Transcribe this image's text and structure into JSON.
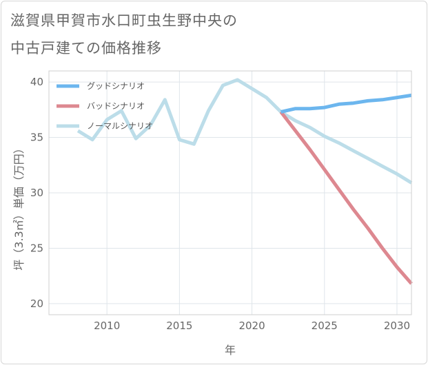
{
  "title_lines": [
    "滋賀県甲賀市水口町虫生野中央の",
    "中古戸建ての価格推移"
  ],
  "chart_data": {
    "type": "line",
    "title": "滋賀県甲賀市水口町虫生野中央の中古戸建ての価格推移",
    "xlabel": "年",
    "ylabel": "坪（3.3㎡）単価（万円）",
    "xlim": [
      2006,
      2031
    ],
    "ylim": [
      19,
      41
    ],
    "xticks": [
      2010,
      2015,
      2020,
      2025,
      2030
    ],
    "yticks": [
      20,
      25,
      30,
      35,
      40
    ],
    "grid": true,
    "legend_position": "top-left",
    "series": [
      {
        "name": "グッドシナリオ",
        "color": "#6cb6ee",
        "x": [
          2022,
          2023,
          2024,
          2025,
          2026,
          2027,
          2028,
          2029,
          2030,
          2031
        ],
        "y": [
          37.3,
          37.6,
          37.6,
          37.7,
          38.0,
          38.1,
          38.3,
          38.4,
          38.6,
          38.8
        ]
      },
      {
        "name": "バッドシナリオ",
        "color": "#dd8890",
        "x": [
          2022,
          2023,
          2024,
          2025,
          2026,
          2027,
          2028,
          2029,
          2030,
          2031
        ],
        "y": [
          37.3,
          35.6,
          33.9,
          32.1,
          30.3,
          28.5,
          26.8,
          25.0,
          23.3,
          21.8
        ]
      },
      {
        "name": "ノーマルシナリオ",
        "color": "#bcdde9",
        "x": [
          2008,
          2009,
          2010,
          2011,
          2012,
          2013,
          2014,
          2015,
          2016,
          2017,
          2018,
          2019,
          2020,
          2021,
          2022,
          2023,
          2024,
          2025,
          2026,
          2027,
          2028,
          2029,
          2030,
          2031
        ],
        "y": [
          35.6,
          34.8,
          36.6,
          37.4,
          34.9,
          36.1,
          38.4,
          34.8,
          34.4,
          37.4,
          39.7,
          40.2,
          39.4,
          38.6,
          37.3,
          36.5,
          35.9,
          35.1,
          34.5,
          33.8,
          33.1,
          32.4,
          31.7,
          30.9
        ]
      }
    ]
  }
}
